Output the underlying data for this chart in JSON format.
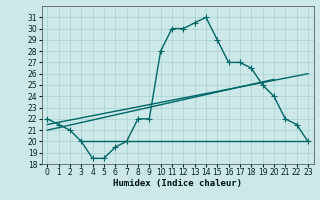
{
  "xlabel": "Humidex (Indice chaleur)",
  "bg_color": "#cce8e8",
  "grid_color": "#aed4d4",
  "line_color": "#006666",
  "xlim": [
    -0.5,
    23.5
  ],
  "ylim": [
    18,
    32
  ],
  "xticks": [
    0,
    1,
    2,
    3,
    4,
    5,
    6,
    7,
    8,
    9,
    10,
    11,
    12,
    13,
    14,
    15,
    16,
    17,
    18,
    19,
    20,
    21,
    22,
    23
  ],
  "yticks": [
    18,
    19,
    20,
    21,
    22,
    23,
    24,
    25,
    26,
    27,
    28,
    29,
    30,
    31
  ],
  "line1_x": [
    0,
    1,
    2,
    3,
    4,
    5,
    6,
    7,
    8,
    9,
    10,
    11,
    12,
    13,
    14,
    15,
    16,
    17,
    18,
    19,
    20,
    21,
    22,
    23
  ],
  "line1_y": [
    22,
    21.5,
    21,
    20,
    18.5,
    18.5,
    19.5,
    20,
    22,
    22,
    28,
    30,
    30,
    30.5,
    31,
    29,
    27,
    27,
    26.5,
    25,
    24,
    22,
    21.5,
    20
  ],
  "line2_x": [
    3,
    23
  ],
  "line2_y": [
    20,
    20
  ],
  "line3_x": [
    0,
    23
  ],
  "line3_y": [
    21.5,
    26
  ],
  "line4_x": [
    0,
    20
  ],
  "line4_y": [
    21,
    25.5
  ],
  "marker": "+",
  "markersize": 4,
  "linewidth": 1.0,
  "tick_fontsize": 5.5,
  "xlabel_fontsize": 6.5
}
